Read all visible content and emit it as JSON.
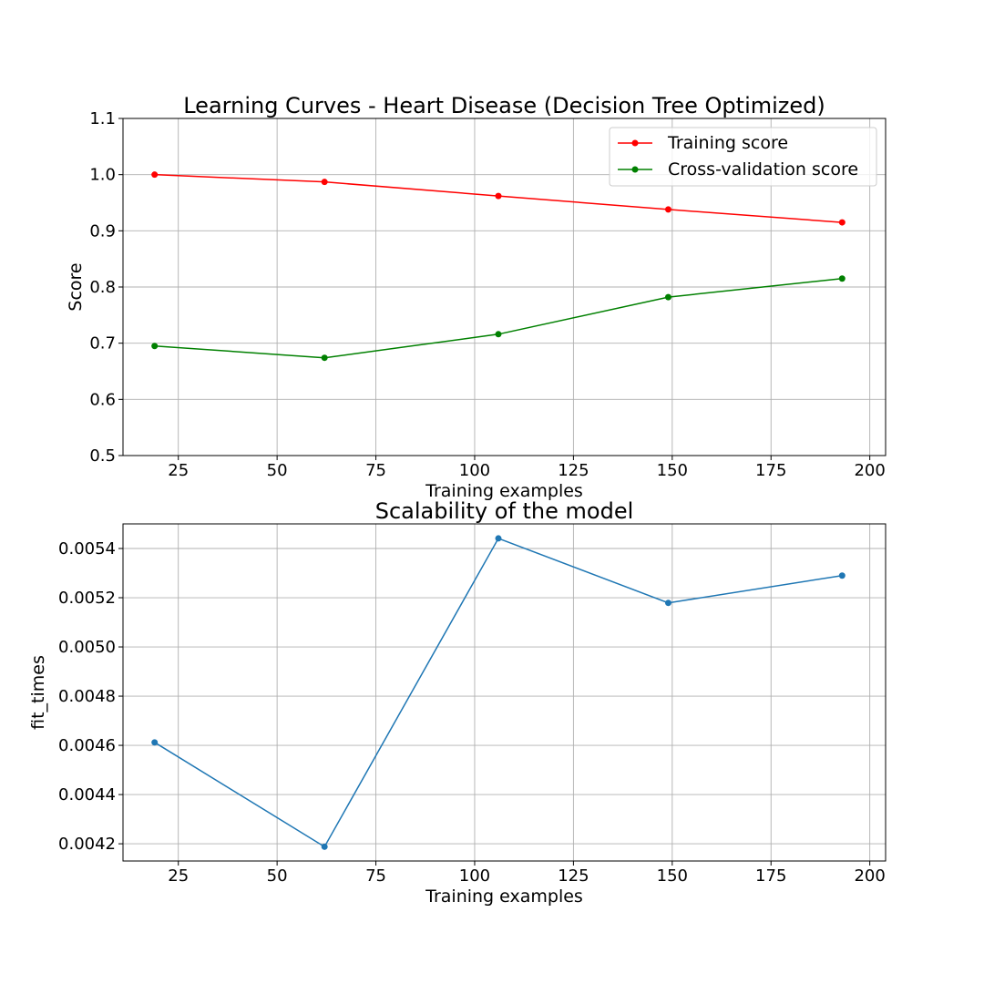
{
  "chart_data": [
    {
      "type": "line",
      "title": "Learning Curves - Heart Disease (Decision Tree Optimized)",
      "xlabel": "Training examples",
      "ylabel": "Score",
      "xlim": [
        11,
        204
      ],
      "ylim": [
        0.5,
        1.1
      ],
      "xticks": [
        25,
        50,
        75,
        100,
        125,
        150,
        175,
        200
      ],
      "xtick_labels": [
        "25",
        "50",
        "75",
        "100",
        "125",
        "150",
        "175",
        "200"
      ],
      "yticks": [
        0.5,
        0.6,
        0.7,
        0.8,
        0.9,
        1.0,
        1.1
      ],
      "ytick_labels": [
        "0.5",
        "0.6",
        "0.7",
        "0.8",
        "0.9",
        "1.0",
        "1.1"
      ],
      "grid": true,
      "legend": "top-right",
      "x": [
        19,
        62,
        106,
        149,
        193
      ],
      "series": [
        {
          "name": "Training score",
          "color": "#ff0000",
          "values": [
            1.0,
            0.987,
            0.962,
            0.938,
            0.915
          ]
        },
        {
          "name": "Cross-validation score",
          "color": "#008000",
          "values": [
            0.695,
            0.674,
            0.716,
            0.782,
            0.815
          ]
        }
      ]
    },
    {
      "type": "line",
      "title": "Scalability of the model",
      "xlabel": "Training examples",
      "ylabel": "fit_times",
      "xlim": [
        11,
        204
      ],
      "ylim": [
        0.00413,
        0.0055
      ],
      "xticks": [
        25,
        50,
        75,
        100,
        125,
        150,
        175,
        200
      ],
      "xtick_labels": [
        "25",
        "50",
        "75",
        "100",
        "125",
        "150",
        "175",
        "200"
      ],
      "yticks": [
        0.0042,
        0.0044,
        0.0046,
        0.0048,
        0.005,
        0.0052,
        0.0054
      ],
      "ytick_labels": [
        "0.0042",
        "0.0044",
        "0.0046",
        "0.0048",
        "0.0050",
        "0.0052",
        "0.0054"
      ],
      "grid": true,
      "x": [
        19,
        62,
        106,
        149,
        193
      ],
      "series": [
        {
          "color": "#1f77b4",
          "values": [
            0.004612,
            0.004188,
            0.005441,
            0.005179,
            0.00529
          ]
        }
      ]
    }
  ]
}
